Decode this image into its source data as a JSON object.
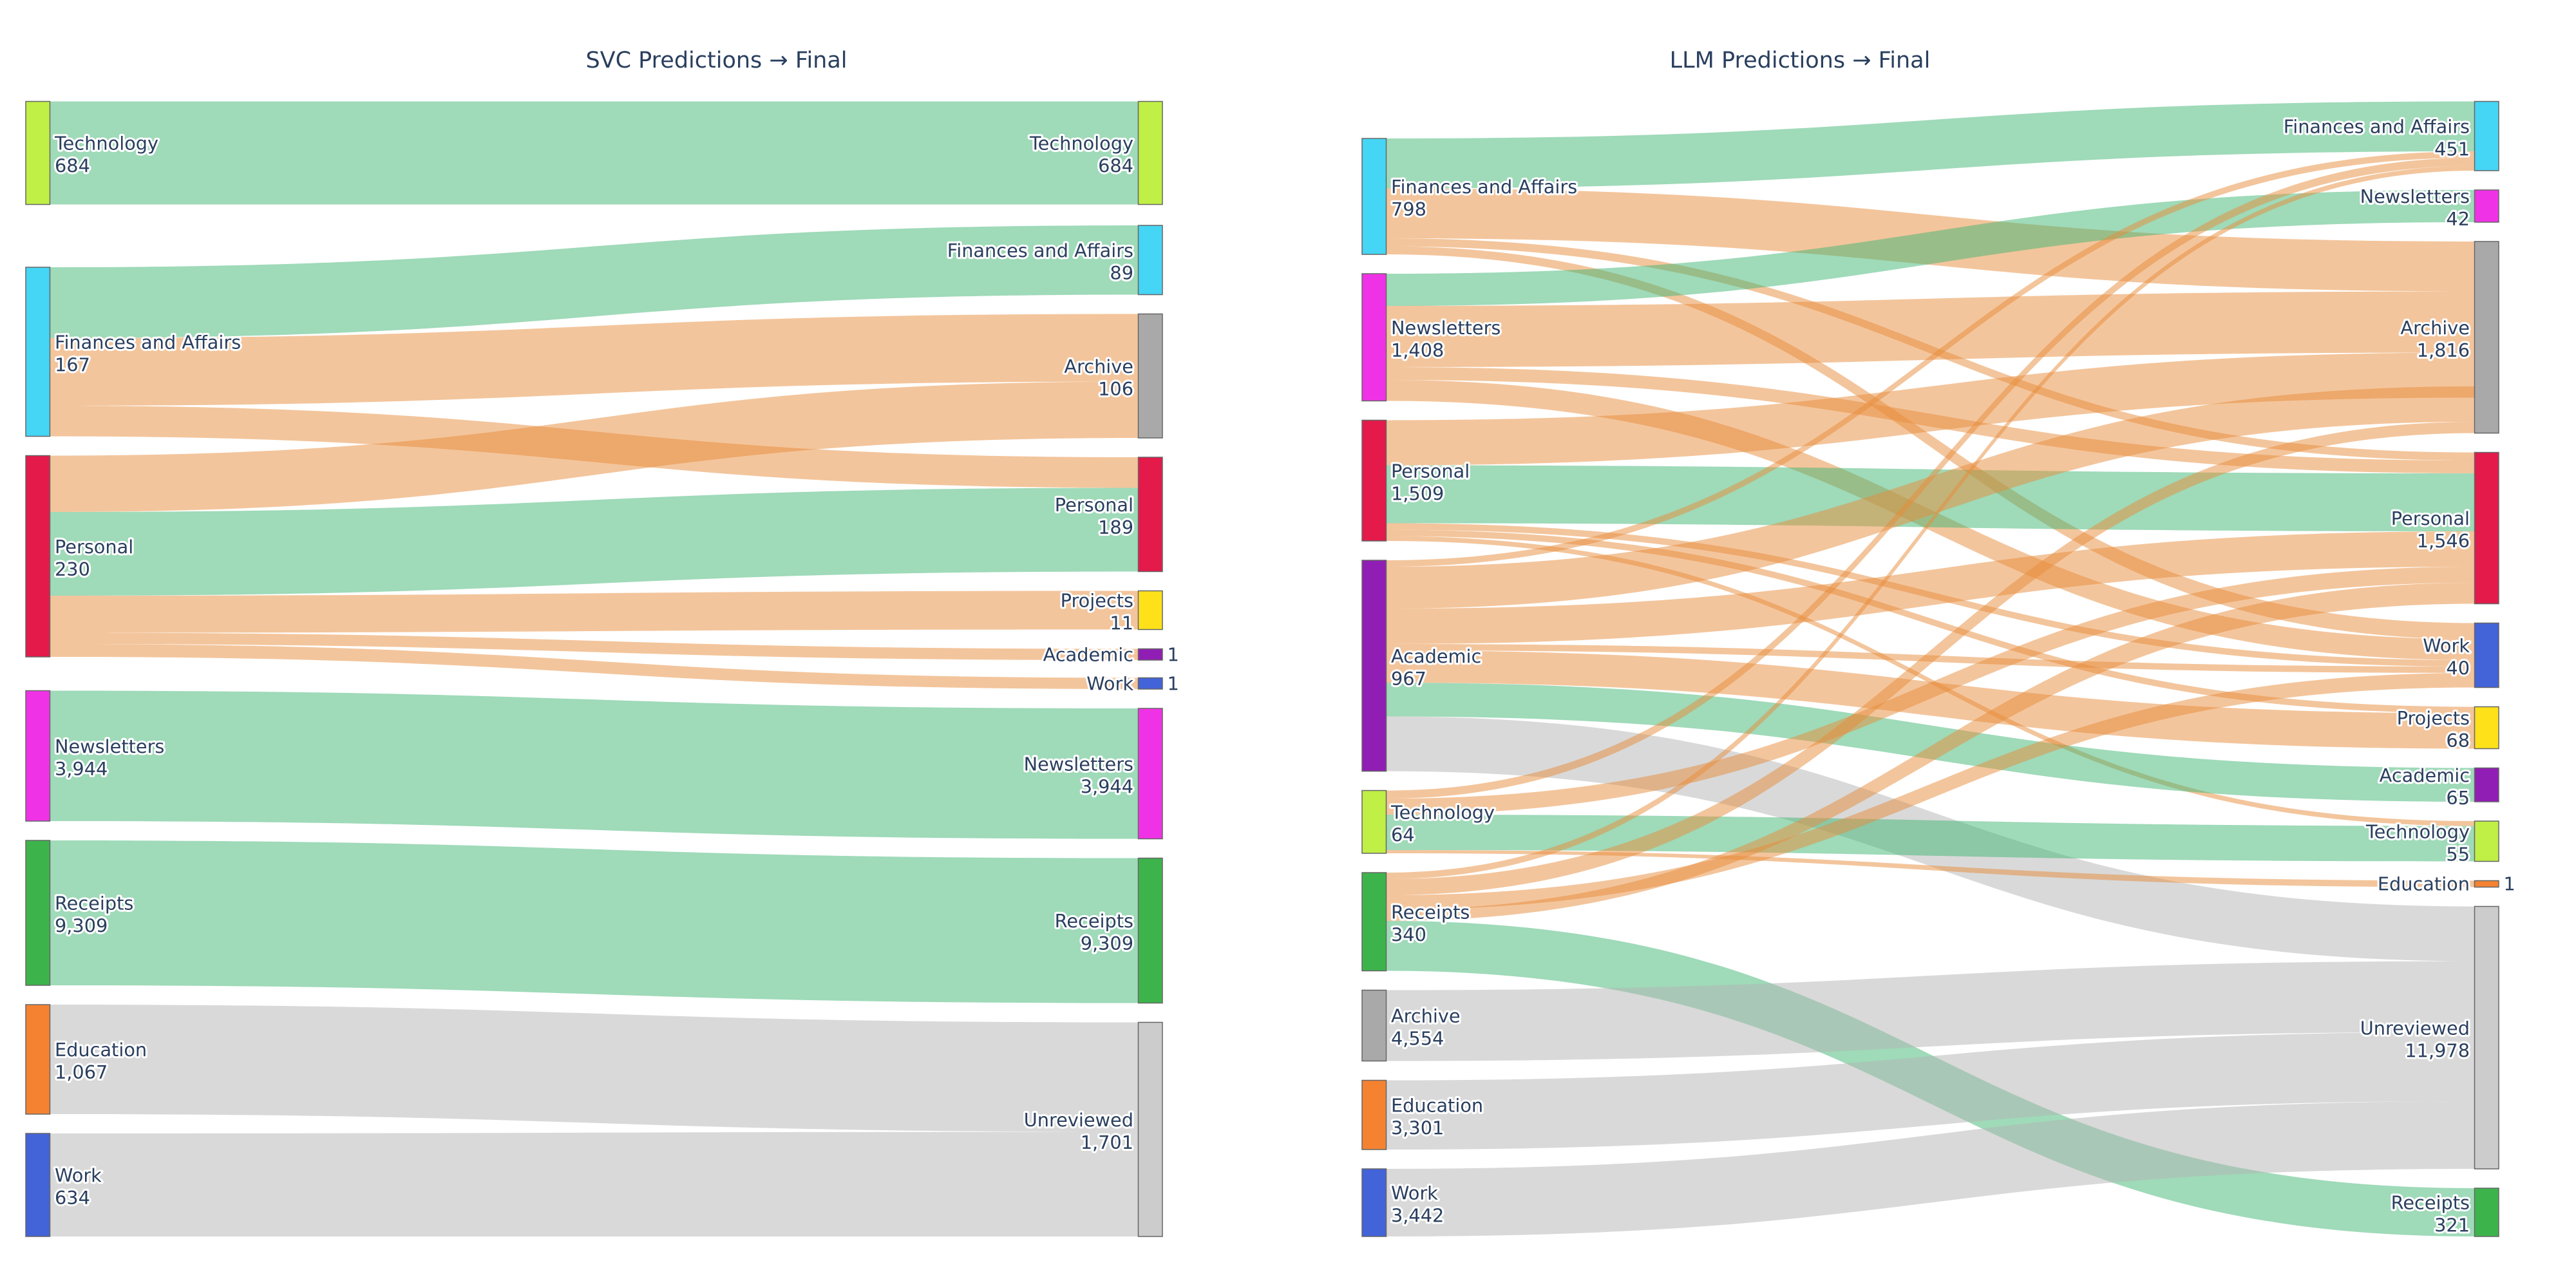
{
  "chart_data": [
    {
      "type": "sankey",
      "title": "SVC Predictions → Final",
      "link_colors": {
        "correct": "#9fdab9",
        "changed": "#f3c59c",
        "unreviewed": "#d9d9d9"
      },
      "sources": [
        {
          "label": "Technology",
          "value": "684",
          "color": "#c0ef45"
        },
        {
          "label": "Finances and Affairs",
          "value": "167",
          "color": "#45d5f5"
        },
        {
          "label": "Personal",
          "value": "230",
          "color": "#e31a4a"
        },
        {
          "label": "Newsletters",
          "value": "3,944",
          "color": "#f032e6"
        },
        {
          "label": "Receipts",
          "value": "9,309",
          "color": "#3cb44b"
        },
        {
          "label": "Education",
          "value": "1,067",
          "color": "#f58231"
        },
        {
          "label": "Work",
          "value": "634",
          "color": "#4363d8"
        }
      ],
      "targets": [
        {
          "label": "Technology",
          "value": "684",
          "color": "#c0ef45"
        },
        {
          "label": "Finances and Affairs",
          "value": "89",
          "color": "#45d5f5"
        },
        {
          "label": "Archive",
          "value": "106",
          "color": "#a9a9a9"
        },
        {
          "label": "Personal",
          "value": "189",
          "color": "#e31a4a"
        },
        {
          "label": "Projects",
          "value": "11",
          "color": "#ffe119"
        },
        {
          "label": "Academic",
          "value": "1",
          "color": "#911eb4"
        },
        {
          "label": "Work",
          "value": "1",
          "color": "#4363d8"
        },
        {
          "label": "Newsletters",
          "value": "3,944",
          "color": "#f032e6"
        },
        {
          "label": "Receipts",
          "value": "9,309",
          "color": "#3cb44b"
        },
        {
          "label": "Unreviewed",
          "value": "1,701",
          "color": "#cccccc"
        }
      ],
      "links": [
        {
          "source": "Technology",
          "target": "Technology",
          "status": "correct"
        },
        {
          "source": "Finances and Affairs",
          "target": "Finances and Affairs",
          "status": "correct"
        },
        {
          "source": "Finances and Affairs",
          "target": "Archive",
          "status": "changed"
        },
        {
          "source": "Finances and Affairs",
          "target": "Personal",
          "status": "changed"
        },
        {
          "source": "Personal",
          "target": "Archive",
          "status": "changed"
        },
        {
          "source": "Personal",
          "target": "Personal",
          "status": "correct"
        },
        {
          "source": "Personal",
          "target": "Projects",
          "status": "changed"
        },
        {
          "source": "Personal",
          "target": "Academic",
          "status": "changed"
        },
        {
          "source": "Personal",
          "target": "Work",
          "status": "changed"
        },
        {
          "source": "Newsletters",
          "target": "Newsletters",
          "status": "correct"
        },
        {
          "source": "Receipts",
          "target": "Receipts",
          "status": "correct"
        },
        {
          "source": "Education",
          "target": "Unreviewed",
          "status": "unreviewed"
        },
        {
          "source": "Work",
          "target": "Unreviewed",
          "status": "unreviewed"
        }
      ]
    },
    {
      "type": "sankey",
      "title": "LLM Predictions → Final",
      "link_colors": {
        "correct": "#9fdab9",
        "changed": "#f3c59c",
        "unreviewed": "#d9d9d9"
      },
      "sources": [
        {
          "label": "Finances and Affairs",
          "value": "798",
          "color": "#45d5f5"
        },
        {
          "label": "Newsletters",
          "value": "1,408",
          "color": "#f032e6"
        },
        {
          "label": "Personal",
          "value": "1,509",
          "color": "#e31a4a"
        },
        {
          "label": "Academic",
          "value": "967",
          "color": "#911eb4"
        },
        {
          "label": "Technology",
          "value": "64",
          "color": "#c0ef45"
        },
        {
          "label": "Receipts",
          "value": "340",
          "color": "#3cb44b"
        },
        {
          "label": "Archive",
          "value": "4,554",
          "color": "#a9a9a9"
        },
        {
          "label": "Education",
          "value": "3,301",
          "color": "#f58231"
        },
        {
          "label": "Work",
          "value": "3,442",
          "color": "#4363d8"
        }
      ],
      "targets": [
        {
          "label": "Finances and Affairs",
          "value": "451",
          "color": "#45d5f5"
        },
        {
          "label": "Newsletters",
          "value": "42",
          "color": "#f032e6"
        },
        {
          "label": "Archive",
          "value": "1,816",
          "color": "#a9a9a9"
        },
        {
          "label": "Personal",
          "value": "1,546",
          "color": "#e31a4a"
        },
        {
          "label": "Work",
          "value": "40",
          "color": "#4363d8"
        },
        {
          "label": "Projects",
          "value": "68",
          "color": "#ffe119"
        },
        {
          "label": "Academic",
          "value": "65",
          "color": "#911eb4"
        },
        {
          "label": "Technology",
          "value": "55",
          "color": "#c0ef45"
        },
        {
          "label": "Education",
          "value": "1",
          "color": "#f58231"
        },
        {
          "label": "Unreviewed",
          "value": "11,978",
          "color": "#cccccc"
        },
        {
          "label": "Receipts",
          "value": "321",
          "color": "#3cb44b"
        }
      ],
      "links": [
        {
          "source": "Finances and Affairs",
          "target": "Finances and Affairs",
          "status": "correct"
        },
        {
          "source": "Finances and Affairs",
          "target": "Archive",
          "status": "changed"
        },
        {
          "source": "Finances and Affairs",
          "target": "Personal",
          "status": "changed"
        },
        {
          "source": "Finances and Affairs",
          "target": "Work",
          "status": "changed"
        },
        {
          "source": "Newsletters",
          "target": "Newsletters",
          "status": "correct"
        },
        {
          "source": "Newsletters",
          "target": "Archive",
          "status": "changed"
        },
        {
          "source": "Newsletters",
          "target": "Personal",
          "status": "changed"
        },
        {
          "source": "Newsletters",
          "target": "Work",
          "status": "changed"
        },
        {
          "source": "Personal",
          "target": "Archive",
          "status": "changed"
        },
        {
          "source": "Personal",
          "target": "Personal",
          "status": "correct"
        },
        {
          "source": "Personal",
          "target": "Work",
          "status": "changed"
        },
        {
          "source": "Personal",
          "target": "Projects",
          "status": "changed"
        },
        {
          "source": "Personal",
          "target": "Technology",
          "status": "changed"
        },
        {
          "source": "Academic",
          "target": "Finances and Affairs",
          "status": "changed"
        },
        {
          "source": "Academic",
          "target": "Archive",
          "status": "changed"
        },
        {
          "source": "Academic",
          "target": "Personal",
          "status": "changed"
        },
        {
          "source": "Academic",
          "target": "Work",
          "status": "changed"
        },
        {
          "source": "Academic",
          "target": "Projects",
          "status": "changed"
        },
        {
          "source": "Academic",
          "target": "Academic",
          "status": "correct"
        },
        {
          "source": "Academic",
          "target": "Unreviewed",
          "status": "unreviewed"
        },
        {
          "source": "Technology",
          "target": "Finances and Affairs",
          "status": "changed"
        },
        {
          "source": "Technology",
          "target": "Personal",
          "status": "changed"
        },
        {
          "source": "Technology",
          "target": "Technology",
          "status": "correct"
        },
        {
          "source": "Technology",
          "target": "Education",
          "status": "changed"
        },
        {
          "source": "Receipts",
          "target": "Finances and Affairs",
          "status": "changed"
        },
        {
          "source": "Receipts",
          "target": "Archive",
          "status": "changed"
        },
        {
          "source": "Receipts",
          "target": "Work",
          "status": "changed"
        },
        {
          "source": "Receipts",
          "target": "Personal",
          "status": "changed"
        },
        {
          "source": "Receipts",
          "target": "Receipts",
          "status": "correct"
        },
        {
          "source": "Archive",
          "target": "Unreviewed",
          "status": "unreviewed"
        },
        {
          "source": "Education",
          "target": "Unreviewed",
          "status": "unreviewed"
        },
        {
          "source": "Work",
          "target": "Unreviewed",
          "status": "unreviewed"
        }
      ]
    }
  ]
}
